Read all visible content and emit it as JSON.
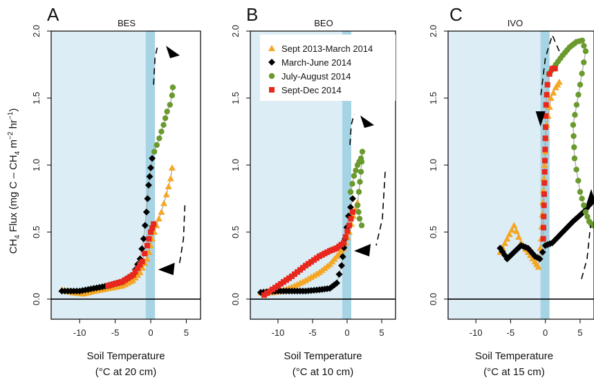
{
  "figure": {
    "ylabel_main": "CH",
    "ylabel_sub4a": "4",
    "ylabel_mid": " Flux (mg C – CH",
    "ylabel_sub4b": "4",
    "ylabel_unit": " m",
    "ylabel_sup_m": "−2",
    "ylabel_hr": " hr",
    "ylabel_sup_hr": "−1",
    "ylabel_close": ")"
  },
  "legend": {
    "entries": [
      {
        "label": "Sept 2013-March 2014",
        "color": "#f5a623",
        "marker": "triangle"
      },
      {
        "label": "March-June 2014",
        "color": "#000000",
        "marker": "diamond"
      },
      {
        "label": "July-August 2014",
        "color": "#6a9a2e",
        "marker": "circle"
      },
      {
        "label": "Sept-Dec 2014",
        "color": "#e8281e",
        "marker": "square"
      }
    ]
  },
  "colors": {
    "background_cold": "#dcedf5",
    "freeze_band": "#a6d4e4",
    "hysteresis_line": "#b0b0b0"
  },
  "chart_data": [
    {
      "type": "scatter",
      "panel": "A",
      "title": "BES",
      "xlabel_line1": "Soil Temperature",
      "xlabel_line2": "(°C at 20 cm)",
      "xlim": [
        -14,
        7
      ],
      "ylim": [
        -0.15,
        2.0
      ],
      "xticks": [
        -10,
        -5,
        0,
        5
      ],
      "yticks": [
        0.0,
        0.5,
        1.0,
        1.5,
        2.0
      ],
      "band": [
        -0.7,
        0.6
      ],
      "grid": false,
      "series": [
        {
          "name": "Sept 2013-March 2014",
          "x": [
            -12.5,
            -11,
            -9.5,
            -8,
            -6,
            -4,
            -2.5,
            -1.5,
            -0.5,
            0.2,
            0.8,
            1.5,
            2.2,
            2.8,
            3.0
          ],
          "y": [
            0.07,
            0.05,
            0.04,
            0.06,
            0.08,
            0.1,
            0.14,
            0.2,
            0.3,
            0.45,
            0.55,
            0.65,
            0.78,
            0.9,
            0.98
          ]
        },
        {
          "name": "March-June 2014",
          "x": [
            -12.5,
            -10,
            -8,
            -6,
            -4,
            -2.5,
            -1.5,
            -1.0,
            -0.6,
            -0.3,
            0.0,
            0.2
          ],
          "y": [
            0.06,
            0.06,
            0.08,
            0.1,
            0.13,
            0.18,
            0.3,
            0.45,
            0.65,
            0.85,
            0.98,
            1.05
          ]
        },
        {
          "name": "July-August 2014",
          "x": [
            0.5,
            1.2,
            1.8,
            2.3,
            2.7,
            3.0,
            3.1
          ],
          "y": [
            1.1,
            1.2,
            1.3,
            1.4,
            1.45,
            1.52,
            1.58
          ]
        },
        {
          "name": "Sept-Dec 2014",
          "x": [
            -6,
            -4,
            -2.5,
            -1.2,
            -0.5,
            0.0,
            0.4
          ],
          "y": [
            0.1,
            0.13,
            0.18,
            0.28,
            0.4,
            0.5,
            0.56
          ]
        }
      ],
      "arrows": [
        {
          "path": [
            [
              0.4,
              1.6
            ],
            [
              0.6,
              1.8
            ],
            [
              1.0,
              1.9
            ]
          ],
          "head": [
            3.5,
            1.87
          ],
          "dir": "right"
        },
        {
          "path": [
            [
              4.8,
              0.7
            ],
            [
              4.6,
              0.45
            ],
            [
              4.0,
              0.25
            ]
          ],
          "head": [
            2.4,
            0.22
          ],
          "dir": "left"
        }
      ]
    },
    {
      "type": "scatter",
      "panel": "B",
      "title": "BEO",
      "xlabel_line1": "Soil Temperature",
      "xlabel_line2": "(°C at 10 cm)",
      "xlim": [
        -14,
        7
      ],
      "ylim": [
        -0.15,
        2.0
      ],
      "xticks": [
        -10,
        -5,
        0,
        5
      ],
      "yticks": [
        0.0,
        0.5,
        1.0,
        1.5,
        2.0
      ],
      "band": [
        -0.7,
        0.6
      ],
      "grid": false,
      "series": [
        {
          "name": "Sept 2013-March 2014",
          "x": [
            -12.5,
            -11,
            -9.5,
            -8,
            -6,
            -4,
            -2.5,
            -1.5,
            -0.5,
            0.3,
            0.9,
            1.5
          ],
          "y": [
            0.05,
            0.05,
            0.06,
            0.09,
            0.14,
            0.2,
            0.26,
            0.32,
            0.38,
            0.5,
            0.62,
            0.72
          ]
        },
        {
          "name": "March-June 2014",
          "x": [
            -12.5,
            -10,
            -8,
            -6,
            -4,
            -2.5,
            -1.5,
            -0.8,
            -0.3,
            0.2,
            0.8
          ],
          "y": [
            0.05,
            0.06,
            0.06,
            0.06,
            0.07,
            0.08,
            0.12,
            0.25,
            0.45,
            0.62,
            0.75
          ]
        },
        {
          "name": "July-August 2014",
          "x": [
            0.5,
            1.0,
            1.5,
            2.0,
            2.2,
            2.0,
            1.7,
            1.5,
            1.8,
            2.1
          ],
          "y": [
            0.8,
            0.92,
            1.0,
            1.05,
            1.1,
            0.95,
            0.8,
            0.7,
            0.6,
            0.55
          ]
        },
        {
          "name": "Sept-Dec 2014",
          "x": [
            -12,
            -10,
            -8,
            -6,
            -4,
            -2.5,
            -1.5,
            -0.5,
            0.3,
            0.8
          ],
          "y": [
            0.03,
            0.1,
            0.17,
            0.25,
            0.32,
            0.36,
            0.38,
            0.42,
            0.55,
            0.65
          ]
        }
      ],
      "arrows": [
        {
          "path": [
            [
              0.4,
              1.15
            ],
            [
              0.6,
              1.3
            ],
            [
              1.0,
              1.38
            ]
          ],
          "head": [
            3.3,
            1.35
          ],
          "dir": "right"
        },
        {
          "path": [
            [
              5.5,
              0.95
            ],
            [
              5.1,
              0.6
            ],
            [
              4.2,
              0.4
            ]
          ],
          "head": [
            2.4,
            0.36
          ],
          "dir": "left"
        }
      ]
    },
    {
      "type": "scatter",
      "panel": "C",
      "title": "IVO",
      "xlabel_line1": "Soil Temperature",
      "xlabel_line2": "(°C at 15 cm)",
      "xlim": [
        -14,
        7
      ],
      "ylim": [
        -0.15,
        2.0
      ],
      "xticks": [
        -10,
        -5,
        0,
        5
      ],
      "yticks": [
        0.0,
        0.5,
        1.0,
        1.5,
        2.0
      ],
      "band": [
        -0.7,
        0.6
      ],
      "grid": false,
      "series": [
        {
          "name": "Sept 2013-March 2014",
          "x": [
            -6.5,
            -5.5,
            -4.5,
            -3.5,
            -2.5,
            -1.5,
            -1.0,
            -0.6,
            -0.2,
            0.2,
            0.8,
            1.5,
            2.0
          ],
          "y": [
            0.35,
            0.45,
            0.55,
            0.42,
            0.35,
            0.28,
            0.24,
            0.45,
            0.9,
            1.3,
            1.5,
            1.58,
            1.62
          ]
        },
        {
          "name": "March-June 2014",
          "x": [
            -6.5,
            -5.5,
            -4.5,
            -3.5,
            -2.5,
            -1.5,
            -0.8,
            0.0,
            1.0,
            2.5,
            4.0,
            5.5,
            6.8
          ],
          "y": [
            0.38,
            0.3,
            0.35,
            0.4,
            0.38,
            0.32,
            0.3,
            0.4,
            0.42,
            0.5,
            0.58,
            0.65,
            0.73
          ]
        },
        {
          "name": "July-August 2014",
          "x": [
            0.5,
            1.5,
            2.5,
            3.5,
            4.5,
            5.3,
            5.8,
            5.0,
            4.0,
            4.2,
            5.0,
            5.8,
            6.3,
            6.8
          ],
          "y": [
            1.68,
            1.75,
            1.82,
            1.88,
            1.92,
            1.93,
            1.85,
            1.6,
            1.3,
            1.05,
            0.8,
            0.65,
            0.58,
            0.55
          ]
        },
        {
          "name": "Sept-Dec 2014",
          "x": [
            -0.3,
            -0.2,
            -0.1,
            0.0,
            0.1,
            0.3,
            0.6,
            1.0,
            1.4
          ],
          "y": [
            0.45,
            0.7,
            0.95,
            1.2,
            1.45,
            1.6,
            1.68,
            1.72,
            1.72
          ]
        }
      ],
      "arrows": [
        {
          "path": [
            [
              2.0,
              1.85
            ],
            [
              1.0,
              1.97
            ],
            [
              0.0,
              1.8
            ],
            [
              -0.7,
              1.5
            ]
          ],
          "head": [
            -0.7,
            1.35
          ],
          "dir": "down"
        },
        {
          "path": [
            [
              5.2,
              0.15
            ],
            [
              6.0,
              0.3
            ],
            [
              6.5,
              0.55
            ]
          ],
          "head": [
            6.6,
            0.75
          ],
          "dir": "up"
        }
      ]
    }
  ]
}
